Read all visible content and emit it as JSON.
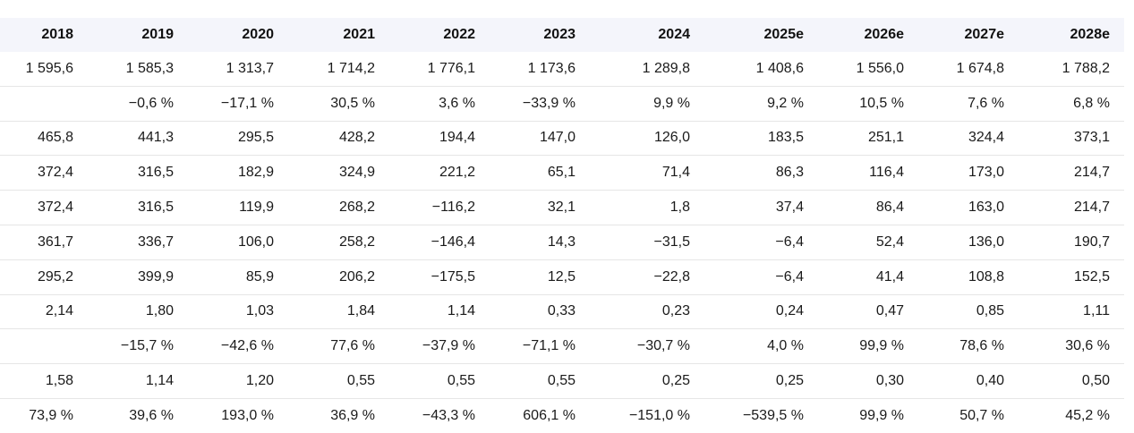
{
  "table": {
    "headers": [
      "2018",
      "2019",
      "2020",
      "2021",
      "2022",
      "2023",
      "2024",
      "2025e",
      "2026e",
      "2027e",
      "2028e"
    ],
    "rows": [
      [
        "1 595,6",
        "1 585,3",
        "1 313,7",
        "1 714,2",
        "1 776,1",
        "1 173,6",
        "1 289,8",
        "1 408,6",
        "1 556,0",
        "1 674,8",
        "1 788,2"
      ],
      [
        "",
        "−0,6 %",
        "−17,1 %",
        "30,5 %",
        "3,6 %",
        "−33,9 %",
        "9,9 %",
        "9,2 %",
        "10,5 %",
        "7,6 %",
        "6,8 %"
      ],
      [
        "465,8",
        "441,3",
        "295,5",
        "428,2",
        "194,4",
        "147,0",
        "126,0",
        "183,5",
        "251,1",
        "324,4",
        "373,1"
      ],
      [
        "372,4",
        "316,5",
        "182,9",
        "324,9",
        "221,2",
        "65,1",
        "71,4",
        "86,3",
        "116,4",
        "173,0",
        "214,7"
      ],
      [
        "372,4",
        "316,5",
        "119,9",
        "268,2",
        "−116,2",
        "32,1",
        "1,8",
        "37,4",
        "86,4",
        "163,0",
        "214,7"
      ],
      [
        "361,7",
        "336,7",
        "106,0",
        "258,2",
        "−146,4",
        "14,3",
        "−31,5",
        "−6,4",
        "52,4",
        "136,0",
        "190,7"
      ],
      [
        "295,2",
        "399,9",
        "85,9",
        "206,2",
        "−175,5",
        "12,5",
        "−22,8",
        "−6,4",
        "41,4",
        "108,8",
        "152,5"
      ],
      [
        "2,14",
        "1,80",
        "1,03",
        "1,84",
        "1,14",
        "0,33",
        "0,23",
        "0,24",
        "0,47",
        "0,85",
        "1,11"
      ],
      [
        "",
        "−15,7 %",
        "−42,6 %",
        "77,6 %",
        "−37,9 %",
        "−71,1 %",
        "−30,7 %",
        "4,0 %",
        "99,9 %",
        "78,6 %",
        "30,6 %"
      ],
      [
        "1,58",
        "1,14",
        "1,20",
        "0,55",
        "0,55",
        "0,55",
        "0,25",
        "0,25",
        "0,30",
        "0,40",
        "0,50"
      ],
      [
        "73,9 %",
        "39,6 %",
        "193,0 %",
        "36,9 %",
        "−43,3 %",
        "606,1 %",
        "−151,0 %",
        "−539,5 %",
        "99,9 %",
        "50,7 %",
        "45,2 %"
      ]
    ]
  }
}
